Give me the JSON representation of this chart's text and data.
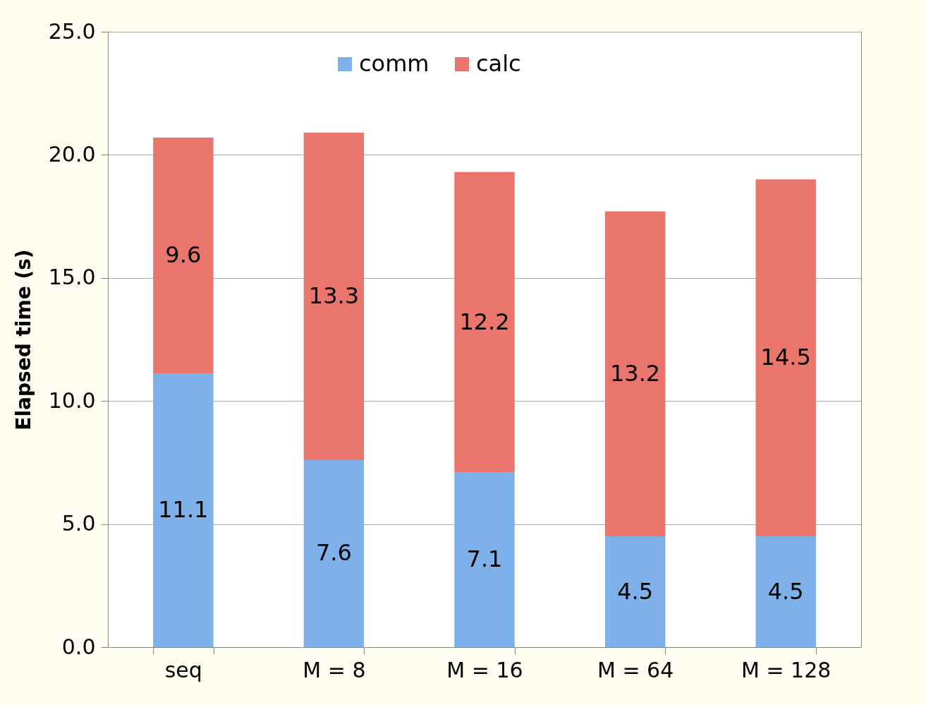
{
  "chart_data": {
    "type": "bar",
    "stacked": true,
    "ylabel": "Elapsed time (s)",
    "categories": [
      "seq",
      "M = 8",
      "M = 16",
      "M = 64",
      "M = 128"
    ],
    "series": [
      {
        "name": "comm",
        "color": "#7eb1ea",
        "values": [
          11.1,
          7.6,
          7.1,
          4.5,
          4.5
        ]
      },
      {
        "name": "calc",
        "color": "#e9756c",
        "values": [
          9.6,
          13.3,
          12.2,
          13.2,
          14.5
        ]
      }
    ],
    "ylim": [
      0,
      25
    ],
    "yticks": [
      {
        "value": 0,
        "label": "0.0"
      },
      {
        "value": 5,
        "label": "5.0"
      },
      {
        "value": 10,
        "label": "10.0"
      },
      {
        "value": 15,
        "label": "15.0"
      },
      {
        "value": 20,
        "label": "20.0"
      },
      {
        "value": 25,
        "label": "25.0"
      }
    ],
    "grid": "y",
    "legend": "top",
    "data_labels": true
  }
}
